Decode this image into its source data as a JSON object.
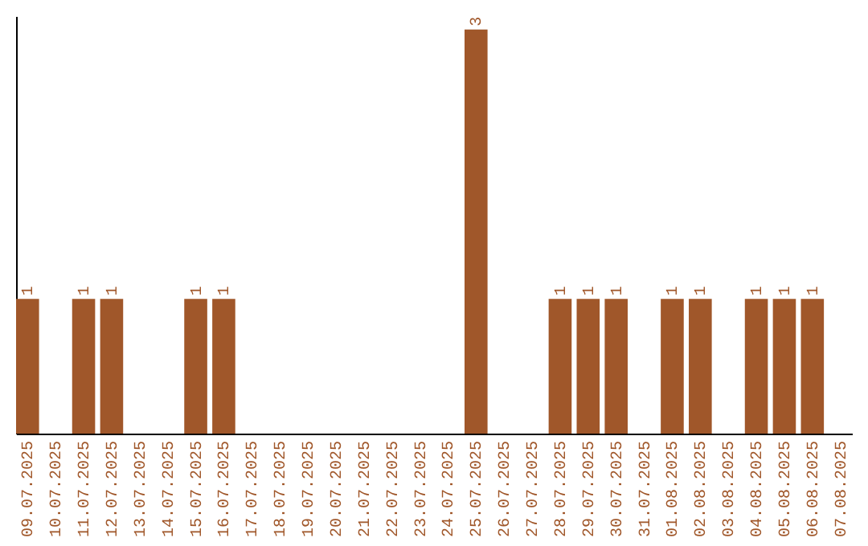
{
  "chart_data": {
    "type": "bar",
    "categories": [
      "09.07.2025",
      "10.07.2025",
      "11.07.2025",
      "12.07.2025",
      "13.07.2025",
      "14.07.2025",
      "15.07.2025",
      "16.07.2025",
      "17.07.2025",
      "18.07.2025",
      "19.07.2025",
      "20.07.2025",
      "21.07.2025",
      "22.07.2025",
      "23.07.2025",
      "24.07.2025",
      "25.07.2025",
      "26.07.2025",
      "27.07.2025",
      "28.07.2025",
      "29.07.2025",
      "30.07.2025",
      "31.07.2025",
      "01.08.2025",
      "02.08.2025",
      "03.08.2025",
      "04.08.2025",
      "05.08.2025",
      "06.08.2025",
      "07.08.2025"
    ],
    "values": [
      1,
      0,
      1,
      1,
      0,
      0,
      1,
      1,
      0,
      0,
      0,
      0,
      0,
      0,
      0,
      0,
      3,
      0,
      0,
      1,
      1,
      1,
      0,
      1,
      1,
      0,
      1,
      1,
      1,
      0
    ],
    "value_labels": [
      "1",
      null,
      "1",
      "1",
      null,
      null,
      "1",
      "1",
      null,
      null,
      null,
      null,
      null,
      null,
      null,
      null,
      "3",
      null,
      null,
      "1",
      "1",
      "1",
      null,
      "1",
      "1",
      null,
      "1",
      "1",
      "1",
      null
    ],
    "color": "#a0572a",
    "ylim": [
      0,
      3.1
    ],
    "tick_labels": "x"
  }
}
